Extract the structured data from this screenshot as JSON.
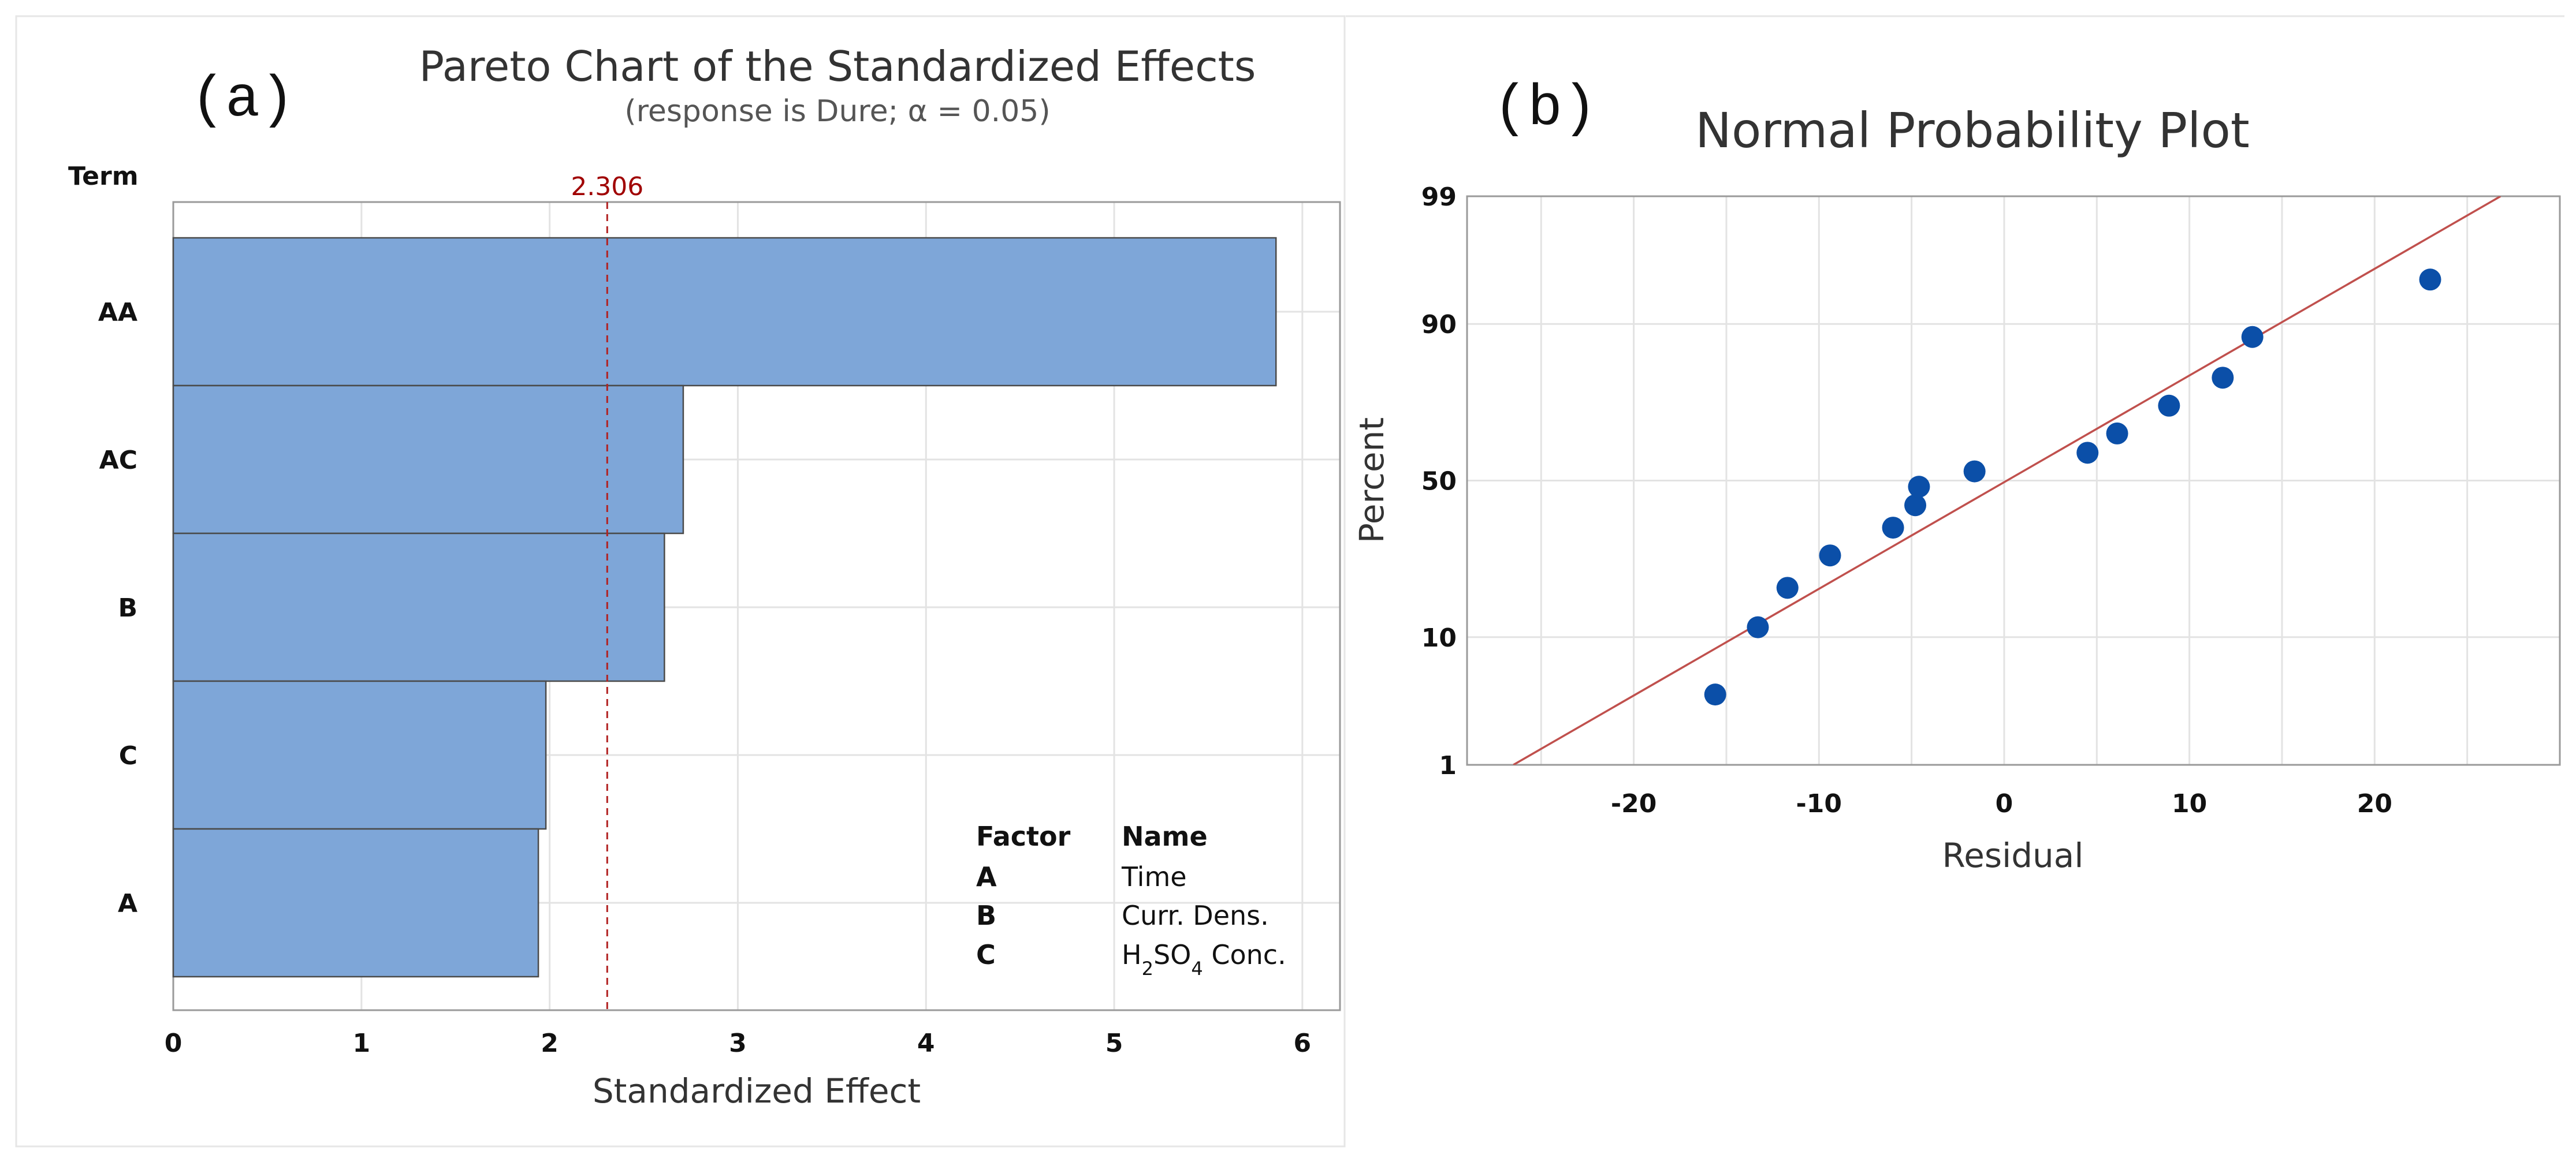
{
  "panel_labels": {
    "a": "(a)",
    "b": "(b)"
  },
  "chart_data": [
    {
      "type": "bar",
      "orientation": "horizontal",
      "title": "Pareto Chart of the Standardized Effects",
      "subtitle": "(response is Dure; α = 0.05)",
      "term_label": "Term",
      "categories": [
        "AA",
        "AC",
        "B",
        "C",
        "A"
      ],
      "values": [
        5.86,
        2.71,
        2.61,
        1.98,
        1.94
      ],
      "xlabel": "Standardized Effect",
      "xlim": [
        0,
        6.2
      ],
      "xticks": [
        "0",
        "1",
        "2",
        "3",
        "4",
        "5",
        "6"
      ],
      "reference_line": {
        "value": 2.306,
        "label": "2.306",
        "color": "#b22222"
      },
      "bar_color": "#7ea6d8",
      "legend": {
        "headers": [
          "Factor",
          "Name"
        ],
        "rows": [
          {
            "factor": "A",
            "name": "Time"
          },
          {
            "factor": "B",
            "name": "Curr. Dens."
          },
          {
            "factor": "C",
            "name": "H2SO4 Conc."
          }
        ]
      }
    },
    {
      "type": "scatter",
      "title": "Normal Probability Plot",
      "xlabel": "Residual",
      "ylabel": "Percent",
      "xlim": [
        -29,
        30
      ],
      "xticks": [
        "-20",
        "-10",
        "0",
        "10",
        "20"
      ],
      "yticks": [
        "1",
        "10",
        "50",
        "90",
        "99"
      ],
      "ytick_values": [
        1,
        10,
        50,
        90,
        99
      ],
      "ylim": [
        1,
        99
      ],
      "point_color": "#0b4fa8",
      "line_color": "#c0504d",
      "fit_line": {
        "x": [
          -26.5,
          26.8
        ],
        "y": [
          1,
          99
        ]
      },
      "points": [
        {
          "x": -15.6,
          "y": 4
        },
        {
          "x": -13.3,
          "y": 11.5
        },
        {
          "x": -11.7,
          "y": 19
        },
        {
          "x": -9.4,
          "y": 27
        },
        {
          "x": -6.0,
          "y": 35
        },
        {
          "x": -4.8,
          "y": 42
        },
        {
          "x": -4.6,
          "y": 48
        },
        {
          "x": -1.6,
          "y": 53
        },
        {
          "x": 4.5,
          "y": 59
        },
        {
          "x": 6.1,
          "y": 65
        },
        {
          "x": 8.9,
          "y": 73
        },
        {
          "x": 11.8,
          "y": 80
        },
        {
          "x": 13.4,
          "y": 88
        },
        {
          "x": 23.0,
          "y": 95
        }
      ]
    }
  ]
}
